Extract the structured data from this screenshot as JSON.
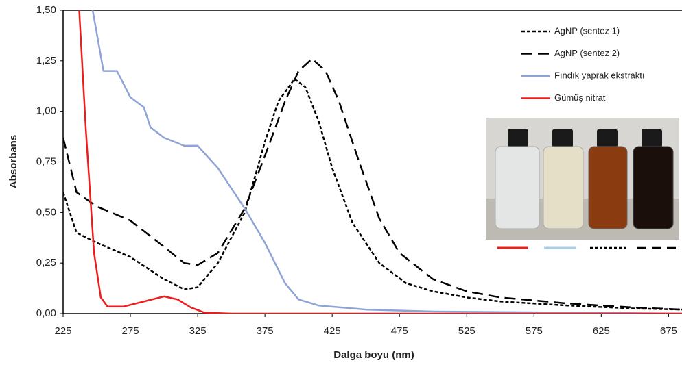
{
  "chart_data": {
    "type": "line",
    "x_label": "Dalga boyu (nm)",
    "y_label": "Absorbans",
    "xlim": [
      225,
      685
    ],
    "ylim": [
      0,
      1.5
    ],
    "xticks": [
      225,
      275,
      325,
      375,
      425,
      475,
      525,
      575,
      625,
      675
    ],
    "yticks": [
      {
        "value": 0,
        "label": "0,00"
      },
      {
        "value": 0.25,
        "label": "0,25"
      },
      {
        "value": 0.5,
        "label": "0,50"
      },
      {
        "value": 0.75,
        "label": "0,75"
      },
      {
        "value": 1.0,
        "label": "1,00"
      },
      {
        "value": 1.25,
        "label": "1,25"
      },
      {
        "value": 1.5,
        "label": "1,50"
      }
    ],
    "grid": false,
    "legend": "upper right",
    "series": [
      {
        "name": "AgNP (sentez 1)",
        "color": "#000000",
        "line_style": "dotted",
        "x": [
          225,
          235,
          250,
          275,
          300,
          315,
          325,
          340,
          360,
          375,
          385,
          397,
          405,
          415,
          425,
          440,
          460,
          480,
          500,
          525,
          550,
          600,
          650,
          685
        ],
        "values": [
          0.6,
          0.4,
          0.35,
          0.28,
          0.17,
          0.12,
          0.13,
          0.25,
          0.5,
          0.85,
          1.05,
          1.16,
          1.12,
          0.95,
          0.72,
          0.45,
          0.25,
          0.15,
          0.11,
          0.08,
          0.06,
          0.04,
          0.025,
          0.02
        ]
      },
      {
        "name": "AgNP (sentez 2)",
        "color": "#000000",
        "line_style": "dashed",
        "x": [
          225,
          235,
          250,
          275,
          300,
          315,
          325,
          340,
          360,
          375,
          390,
          400,
          410,
          420,
          430,
          445,
          460,
          475,
          500,
          525,
          550,
          600,
          650,
          685
        ],
        "values": [
          0.87,
          0.6,
          0.53,
          0.46,
          0.33,
          0.25,
          0.24,
          0.3,
          0.52,
          0.78,
          1.05,
          1.2,
          1.26,
          1.2,
          1.05,
          0.75,
          0.47,
          0.3,
          0.17,
          0.11,
          0.08,
          0.05,
          0.03,
          0.02
        ]
      },
      {
        "name": "Fındık yaprak ekstraktı",
        "color": "#8ea3d6",
        "line_style": "solid",
        "x": [
          247,
          255,
          265,
          275,
          285,
          290,
          300,
          315,
          325,
          340,
          360,
          375,
          390,
          400,
          415,
          450,
          500,
          600,
          685
        ],
        "values": [
          1.5,
          1.2,
          1.2,
          1.07,
          1.02,
          0.92,
          0.87,
          0.83,
          0.83,
          0.72,
          0.52,
          0.35,
          0.15,
          0.07,
          0.04,
          0.02,
          0.01,
          0.005,
          0
        ]
      },
      {
        "name": "Gümüş nitrat",
        "color": "#ee1c1c",
        "line_style": "solid",
        "x": [
          237,
          242,
          248,
          253,
          258,
          270,
          285,
          300,
          310,
          320,
          330,
          350,
          685
        ],
        "values": [
          1.5,
          0.9,
          0.3,
          0.08,
          0.035,
          0.035,
          0.06,
          0.085,
          0.07,
          0.03,
          0.005,
          0,
          0
        ]
      }
    ]
  }
}
